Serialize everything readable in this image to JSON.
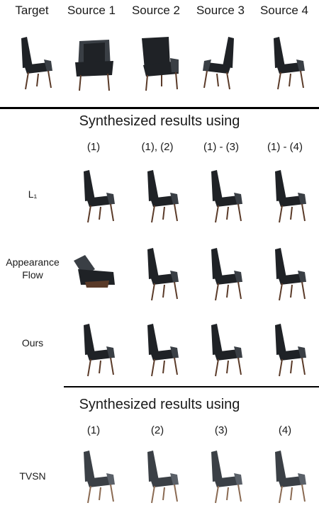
{
  "top_header": {
    "labels": [
      "Target",
      "Source 1",
      "Source 2",
      "Source 3",
      "Source 4"
    ]
  },
  "section1": {
    "title": "Synthesized results using",
    "column_labels": [
      "(1)",
      "(1), (2)",
      "(1) - (3)",
      "(1) - (4)"
    ],
    "rows": [
      {
        "label": "L₁"
      },
      {
        "label_line1": "Appearance",
        "label_line2": "Flow"
      },
      {
        "label": "Ours"
      }
    ]
  },
  "section2": {
    "title": "Synthesized results using",
    "column_labels": [
      "(1)",
      "(2)",
      "(3)",
      "(4)"
    ],
    "rows": [
      {
        "label": "TVSN"
      }
    ]
  },
  "colors": {
    "chair": "#1f2226",
    "chair_highlight": "#3a3f45",
    "legs": "#5a3a28",
    "rule": "#000000"
  },
  "icons": [
    "chair-image"
  ]
}
